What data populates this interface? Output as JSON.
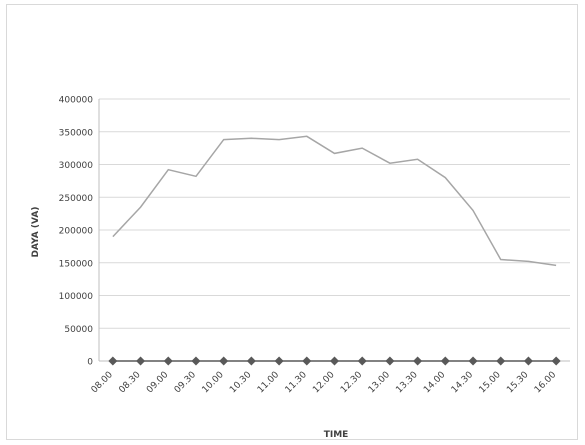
{
  "chart_data": {
    "type": "line",
    "title": "",
    "xlabel": "TIME",
    "ylabel": "DAYA (VA)",
    "grid": true,
    "legend": "none",
    "ylim": [
      0,
      400000
    ],
    "yticks": [
      0,
      50000,
      100000,
      150000,
      200000,
      250000,
      300000,
      350000,
      400000
    ],
    "ytick_labels": [
      "0",
      "50000",
      "100000",
      "150000",
      "200000",
      "250000",
      "300000",
      "350000",
      "400000"
    ],
    "categories": [
      "08.00",
      "08.30",
      "09.00",
      "09.30",
      "10.00",
      "10.30",
      "11.00",
      "11.30",
      "12.00",
      "12.30",
      "13.00",
      "13.30",
      "14.00",
      "14.30",
      "15.00",
      "15.30",
      "16.00"
    ],
    "series": [
      {
        "values": [
          190000,
          235000,
          292000,
          282000,
          338000,
          340000,
          338000,
          343000,
          317000,
          325000,
          302000,
          308000,
          280000,
          230000,
          155000,
          152000,
          146000
        ],
        "color": "#a6a6a6",
        "marker": "none"
      },
      {
        "values": [
          0,
          0,
          0,
          0,
          0,
          0,
          0,
          0,
          0,
          0,
          0,
          0,
          0,
          0,
          0,
          0,
          0
        ],
        "color": "#595959",
        "marker": "diamond"
      }
    ],
    "colors": {
      "grid": "#d9d9d9",
      "axis": "#bfbfbf",
      "text": "#404040"
    }
  }
}
